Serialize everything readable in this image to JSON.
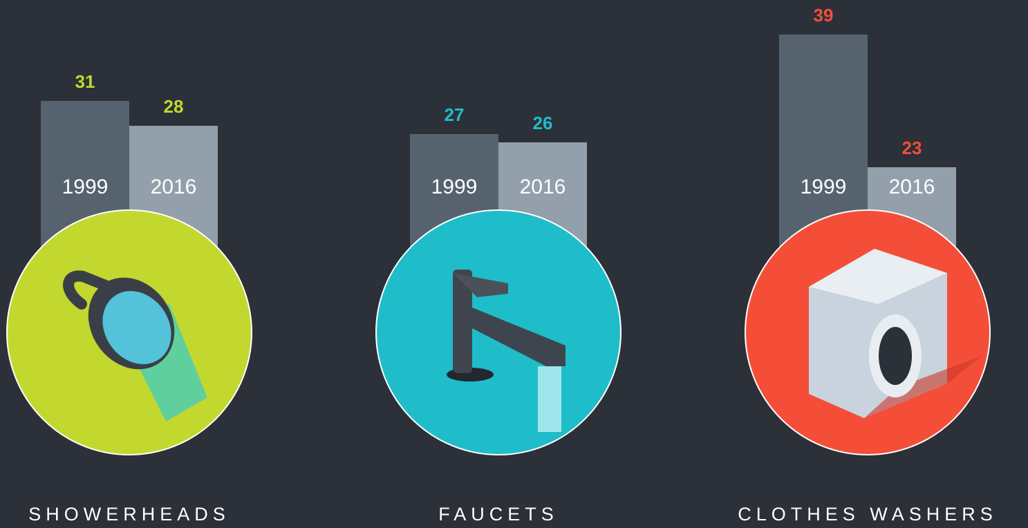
{
  "chart_data": [
    {
      "type": "bar",
      "title": "SHOWERHEADS",
      "categories": [
        "1999",
        "2016"
      ],
      "values": [
        31,
        28
      ],
      "color": "#c3d82e",
      "bar_colors": [
        "#56636f",
        "#939faa"
      ]
    },
    {
      "type": "bar",
      "title": "FAUCETS",
      "categories": [
        "1999",
        "2016"
      ],
      "values": [
        27,
        26
      ],
      "color": "#1fbdc9",
      "bar_colors": [
        "#56636f",
        "#939faa"
      ]
    },
    {
      "type": "bar",
      "title": "CLOTHES WASHERS",
      "categories": [
        "1999",
        "2016"
      ],
      "values": [
        39,
        23
      ],
      "color": "#f44e38",
      "bar_colors": [
        "#56636f",
        "#939faa"
      ]
    }
  ]
}
